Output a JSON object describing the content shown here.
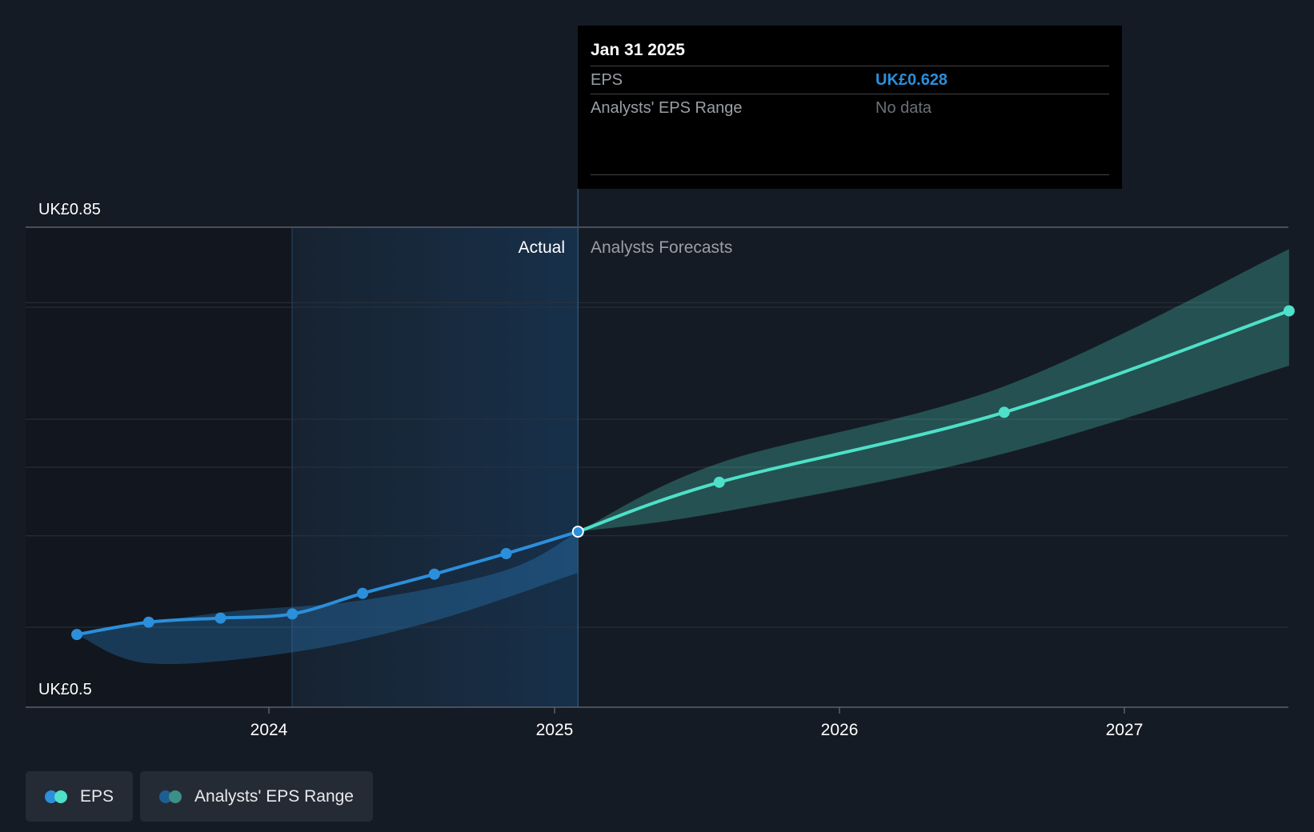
{
  "chart_data": {
    "type": "line",
    "y_axis": {
      "top_label": "UK£0.85",
      "bottom_label": "UK£0.5",
      "ylim": [
        0.5,
        0.85
      ]
    },
    "x_axis": {
      "ticks": [
        "2024",
        "2025",
        "2026",
        "2027"
      ]
    },
    "region_labels": {
      "actual": "Actual",
      "forecast": "Analysts Forecasts"
    },
    "series": [
      {
        "name": "EPS",
        "kind": "actual",
        "color": "#2b8fdb",
        "points": [
          {
            "x": "2023-04-30",
            "y": 0.553
          },
          {
            "x": "2023-07-31",
            "y": 0.562
          },
          {
            "x": "2023-10-31",
            "y": 0.565
          },
          {
            "x": "2024-01-31",
            "y": 0.568
          },
          {
            "x": "2024-04-30",
            "y": 0.583
          },
          {
            "x": "2024-07-31",
            "y": 0.597
          },
          {
            "x": "2024-10-31",
            "y": 0.612
          },
          {
            "x": "2025-01-31",
            "y": 0.628
          }
        ]
      },
      {
        "name": "EPS",
        "kind": "forecast",
        "color": "#4ee0c8",
        "points": [
          {
            "x": "2025-01-31",
            "y": 0.628
          },
          {
            "x": "2025-07-31",
            "y": 0.664
          },
          {
            "x": "2026-07-31",
            "y": 0.715
          },
          {
            "x": "2027-07-31",
            "y": 0.789
          }
        ]
      }
    ],
    "ranges": [
      {
        "name": "Analysts' EPS Range",
        "kind": "actual",
        "color": "#2b8fdb",
        "upper": [
          [
            "2023-04-30",
            0.553
          ],
          [
            "2023-10-31",
            0.569
          ],
          [
            "2024-04-30",
            0.578
          ],
          [
            "2024-10-31",
            0.6
          ],
          [
            "2025-01-31",
            0.628
          ]
        ],
        "lower": [
          [
            "2023-04-30",
            0.553
          ],
          [
            "2023-07-31",
            0.532
          ],
          [
            "2024-01-31",
            0.54
          ],
          [
            "2024-07-31",
            0.563
          ],
          [
            "2025-01-31",
            0.598
          ]
        ]
      },
      {
        "name": "Analysts' EPS Range",
        "kind": "forecast",
        "color": "#4ee0c8",
        "upper": [
          [
            "2025-01-31",
            0.628
          ],
          [
            "2025-07-31",
            0.678
          ],
          [
            "2026-07-31",
            0.734
          ],
          [
            "2027-07-31",
            0.834
          ]
        ],
        "lower": [
          [
            "2025-01-31",
            0.628
          ],
          [
            "2025-07-31",
            0.642
          ],
          [
            "2026-07-31",
            0.685
          ],
          [
            "2027-07-31",
            0.749
          ]
        ]
      }
    ],
    "highlight": {
      "x": "2025-01-31",
      "y": 0.628
    },
    "grid": true
  },
  "tooltip": {
    "date": "Jan 31 2025",
    "rows": [
      {
        "label": "EPS",
        "value": "UK£0.628",
        "value_color": "#2b8fdb"
      },
      {
        "label": "Analysts' EPS Range",
        "value": "No data",
        "value_color": "#6b7078"
      }
    ]
  },
  "legend": [
    {
      "label": "EPS",
      "colors": [
        "#2b8fdb",
        "#4ee0c8"
      ]
    },
    {
      "label": "Analysts' EPS Range",
      "colors": [
        "#1e5f92",
        "#3d8f87"
      ]
    }
  ]
}
